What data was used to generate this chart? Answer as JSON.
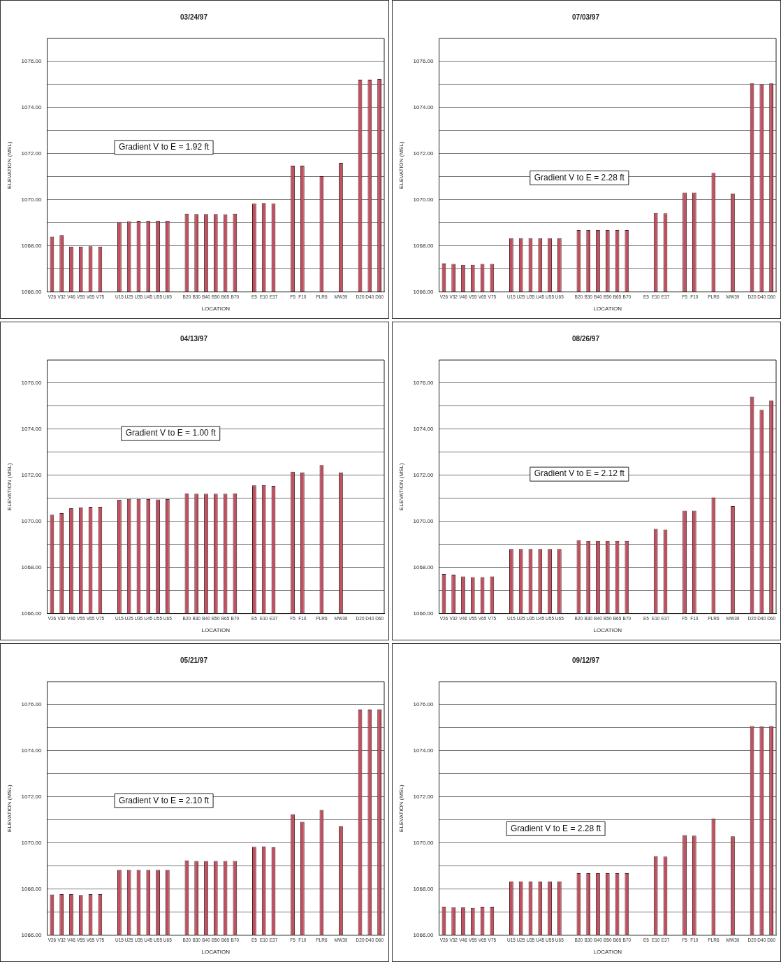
{
  "chart_data": [
    {
      "type": "bar",
      "title": "03/24/97",
      "xlabel": "LOCATION",
      "ylabel": "ELEVATION (MSL)",
      "categories": [
        "V26",
        "V32",
        "V46",
        "V55",
        "V65",
        "V75",
        null,
        "U15",
        "U25",
        "U35",
        "U45",
        "U55",
        "U65",
        null,
        "B20",
        "B30",
        "B40",
        "B50",
        "B65",
        "B70",
        null,
        "E5",
        "E10",
        "E37",
        null,
        "F5",
        "F10",
        null,
        "PLR6",
        null,
        "MW39",
        null,
        "D20",
        "D40",
        "D60"
      ],
      "values": [
        1068.4,
        1068.47,
        1067.97,
        1067.97,
        1067.98,
        1067.97,
        null,
        1069.03,
        1069.07,
        1069.08,
        1069.09,
        1069.09,
        1069.09,
        null,
        1069.39,
        1069.38,
        1069.38,
        1069.38,
        1069.37,
        1069.39,
        null,
        1069.83,
        1069.84,
        1069.83,
        null,
        1071.48,
        1071.48,
        null,
        1071.02,
        null,
        1071.6,
        null,
        1075.21,
        1075.21,
        1075.24
      ],
      "color": "#c0505e",
      "ylim": [
        1066,
        1077
      ],
      "yticks": [
        {
          "value": 1066,
          "label": "1066.00"
        },
        {
          "value": 1067,
          "label": null
        },
        {
          "value": 1068,
          "label": "1068.00"
        },
        {
          "value": 1069,
          "label": null
        },
        {
          "value": 1070,
          "label": "1070.00"
        },
        {
          "value": 1071,
          "label": null
        },
        {
          "value": 1072,
          "label": "1072.00"
        },
        {
          "value": 1073,
          "label": null
        },
        {
          "value": 1074,
          "label": "1074.00"
        },
        {
          "value": 1075,
          "label": null
        },
        {
          "value": 1076,
          "label": "1076.00"
        }
      ],
      "grid": "y",
      "annotations": [
        "Gradient V to E = 1.92 ft"
      ]
    },
    {
      "type": "bar",
      "title": "07/03/97",
      "xlabel": "LOCATION",
      "ylabel": "ELEVATION (MSL)",
      "categories": [
        "V26",
        "V32",
        "V46",
        "V55",
        "V65",
        "V75",
        null,
        "U15",
        "U25",
        "U35",
        "U45",
        "U55",
        "U65",
        null,
        "B20",
        "B30",
        "B40",
        "B50",
        "B65",
        "B70",
        null,
        "E5",
        "E10",
        "E37",
        null,
        "F5",
        "F10",
        null,
        "PLR6",
        null,
        "MW39",
        null,
        "D20",
        "D40",
        "D60"
      ],
      "values": [
        1067.23,
        1067.22,
        1067.18,
        1067.18,
        1067.22,
        1067.22,
        null,
        1068.33,
        1068.33,
        1068.33,
        1068.33,
        1068.33,
        1068.33,
        null,
        1068.69,
        1068.69,
        1068.69,
        1068.69,
        1068.69,
        1068.69,
        null,
        null,
        1069.42,
        1069.41,
        null,
        1070.31,
        1070.31,
        null,
        1071.17,
        null,
        1070.27,
        null,
        1075.05,
        1075.01,
        1075.05
      ],
      "color": "#c0505e",
      "ylim": [
        1066,
        1077
      ],
      "yticks": [
        {
          "value": 1066,
          "label": "1066.00"
        },
        {
          "value": 1067,
          "label": null
        },
        {
          "value": 1068,
          "label": "1068.00"
        },
        {
          "value": 1069,
          "label": null
        },
        {
          "value": 1070,
          "label": "1070.00"
        },
        {
          "value": 1071,
          "label": null
        },
        {
          "value": 1072,
          "label": "1072.00"
        },
        {
          "value": 1073,
          "label": null
        },
        {
          "value": 1074,
          "label": "1074.00"
        },
        {
          "value": 1075,
          "label": null
        },
        {
          "value": 1076,
          "label": "1076.00"
        }
      ],
      "grid": "y",
      "annotations": [
        "Gradient V to E = 2.28 ft"
      ]
    },
    {
      "type": "bar",
      "title": "04/13/97",
      "xlabel": "LOCATION",
      "ylabel": "ELEVATION (MSL)",
      "categories": [
        "V26",
        "V32",
        "V46",
        "V55",
        "V65",
        "V75",
        null,
        "U15",
        "U25",
        "U35",
        "U45",
        "U55",
        "U65",
        null,
        "B20",
        "B30",
        "B40",
        "B50",
        "B65",
        "B70",
        null,
        "E5",
        "E10",
        "E37",
        null,
        "F5",
        "F10",
        null,
        "PLR6",
        null,
        "MW39",
        null,
        "D20",
        "D40",
        "D60"
      ],
      "values": [
        1070.29,
        1070.36,
        1070.57,
        1070.61,
        1070.63,
        1070.63,
        null,
        1070.94,
        1070.97,
        1070.97,
        1070.96,
        1070.95,
        1070.96,
        null,
        1071.21,
        1071.2,
        1071.2,
        1071.2,
        1071.2,
        1071.21,
        null,
        1071.56,
        1071.58,
        1071.54,
        null,
        1072.15,
        1072.12,
        null,
        1072.44,
        null,
        1072.12,
        null,
        null,
        null,
        null
      ],
      "color": "#c0505e",
      "ylim": [
        1066,
        1077
      ],
      "yticks": [
        {
          "value": 1066,
          "label": "1066.00"
        },
        {
          "value": 1067,
          "label": null
        },
        {
          "value": 1068,
          "label": "1068.00"
        },
        {
          "value": 1069,
          "label": null
        },
        {
          "value": 1070,
          "label": "1070.00"
        },
        {
          "value": 1071,
          "label": null
        },
        {
          "value": 1072,
          "label": "1072.00"
        },
        {
          "value": 1073,
          "label": null
        },
        {
          "value": 1074,
          "label": "1074.00"
        },
        {
          "value": 1075,
          "label": null
        },
        {
          "value": 1076,
          "label": "1076.00"
        }
      ],
      "grid": "y",
      "annotations": [
        "Gradient V to E = 1.00 ft"
      ]
    },
    {
      "type": "bar",
      "title": "08/26/97",
      "xlabel": "LOCATION",
      "ylabel": "ELEVATION (MSL)",
      "categories": [
        "V26",
        "V32",
        "V46",
        "V55",
        "V65",
        "V75",
        null,
        "U15",
        "U25",
        "U35",
        "U45",
        "U55",
        "U65",
        null,
        "B20",
        "B30",
        "B40",
        "B50",
        "B65",
        "B70",
        null,
        "E5",
        "E10",
        "E37",
        null,
        "F5",
        "F10",
        null,
        "PLR6",
        null,
        "MW39",
        null,
        "D20",
        "D40",
        "D60"
      ],
      "values": [
        1067.72,
        1067.69,
        1067.61,
        1067.58,
        1067.58,
        1067.61,
        null,
        1068.8,
        1068.8,
        1068.8,
        1068.8,
        1068.8,
        1068.8,
        null,
        1069.18,
        1069.15,
        1069.15,
        1069.15,
        1069.15,
        1069.15,
        null,
        null,
        1069.67,
        1069.64,
        null,
        1070.46,
        1070.46,
        null,
        1071.04,
        null,
        1070.66,
        null,
        1075.41,
        1074.84,
        1075.25
      ],
      "color": "#c0505e",
      "ylim": [
        1066,
        1077
      ],
      "yticks": [
        {
          "value": 1066,
          "label": "1066.00"
        },
        {
          "value": 1067,
          "label": null
        },
        {
          "value": 1068,
          "label": "1068.00"
        },
        {
          "value": 1069,
          "label": null
        },
        {
          "value": 1070,
          "label": "1070.00"
        },
        {
          "value": 1071,
          "label": null
        },
        {
          "value": 1072,
          "label": "1072.00"
        },
        {
          "value": 1073,
          "label": null
        },
        {
          "value": 1074,
          "label": "1074.00"
        },
        {
          "value": 1075,
          "label": null
        },
        {
          "value": 1076,
          "label": "1076.00"
        }
      ],
      "grid": "y",
      "annotations": [
        "Gradient V to E = 2.12 ft"
      ]
    },
    {
      "type": "bar",
      "title": "05/21/97",
      "xlabel": "LOCATION",
      "ylabel": "ELEVATION (MSL)",
      "categories": [
        "V26",
        "V32",
        "V46",
        "V55",
        "V65",
        "V75",
        null,
        "U15",
        "U25",
        "U35",
        "U45",
        "U55",
        "U65",
        null,
        "B20",
        "B30",
        "B40",
        "B50",
        "B65",
        "B70",
        null,
        "E5",
        "E10",
        "E37",
        null,
        "F5",
        "F10",
        null,
        "PLR6",
        null,
        "MW39",
        null,
        "D20",
        "D40",
        "D60"
      ],
      "values": [
        1067.76,
        1067.78,
        1067.78,
        1067.74,
        1067.78,
        1067.78,
        null,
        1068.83,
        1068.83,
        1068.83,
        1068.83,
        1068.83,
        1068.83,
        null,
        1069.24,
        1069.22,
        1069.22,
        1069.22,
        1069.22,
        1069.22,
        null,
        1069.83,
        1069.85,
        1069.82,
        null,
        1071.24,
        1070.92,
        null,
        1071.43,
        null,
        1070.73,
        null,
        1075.79,
        1075.79,
        1075.8
      ],
      "color": "#c0505e",
      "ylim": [
        1066,
        1077
      ],
      "yticks": [
        {
          "value": 1066,
          "label": "1066.00"
        },
        {
          "value": 1067,
          "label": null
        },
        {
          "value": 1068,
          "label": "1068.00"
        },
        {
          "value": 1069,
          "label": null
        },
        {
          "value": 1070,
          "label": "1070.00"
        },
        {
          "value": 1071,
          "label": null
        },
        {
          "value": 1072,
          "label": "1072.00"
        },
        {
          "value": 1073,
          "label": null
        },
        {
          "value": 1074,
          "label": "1074.00"
        },
        {
          "value": 1075,
          "label": null
        },
        {
          "value": 1076,
          "label": "1076.00"
        }
      ],
      "grid": "y",
      "annotations": [
        "Gradient V to E = 2.10 ft"
      ]
    },
    {
      "type": "bar",
      "title": "09/12/97",
      "xlabel": "LOCATION",
      "ylabel": "ELEVATION (MSL)",
      "categories": [
        "V26",
        "V32",
        "V46",
        "V55",
        "V65",
        "V75",
        null,
        "U15",
        "U25",
        "U35",
        "U45",
        "U55",
        "U65",
        null,
        "B20",
        "B30",
        "B40",
        "B50",
        "B65",
        "B70",
        null,
        "E5",
        "E10",
        "E37",
        null,
        "F5",
        "F10",
        null,
        "PLR6",
        null,
        "MW39",
        null,
        "D20",
        "D40",
        "D60"
      ],
      "values": [
        1067.24,
        1067.22,
        1067.2,
        1067.18,
        1067.23,
        1067.23,
        null,
        1068.33,
        1068.33,
        1068.33,
        1068.33,
        1068.33,
        1068.33,
        null,
        1068.69,
        1068.69,
        1068.69,
        1068.69,
        1068.69,
        1068.69,
        null,
        null,
        1069.43,
        1069.41,
        null,
        1070.34,
        1070.32,
        null,
        1071.06,
        null,
        1070.29,
        null,
        1075.07,
        1075.05,
        1075.07
      ],
      "color": "#c0505e",
      "ylim": [
        1066,
        1077
      ],
      "yticks": [
        {
          "value": 1066,
          "label": "1066.00"
        },
        {
          "value": 1067,
          "label": null
        },
        {
          "value": 1068,
          "label": "1068.00"
        },
        {
          "value": 1069,
          "label": null
        },
        {
          "value": 1070,
          "label": "1070.00"
        },
        {
          "value": 1071,
          "label": null
        },
        {
          "value": 1072,
          "label": "1072.00"
        },
        {
          "value": 1073,
          "label": null
        },
        {
          "value": 1074,
          "label": "1074.00"
        },
        {
          "value": 1075,
          "label": null
        },
        {
          "value": 1076,
          "label": "1076.00"
        }
      ],
      "grid": "y",
      "annotations": [
        "Gradient V to E = 2.28 ft"
      ]
    }
  ]
}
